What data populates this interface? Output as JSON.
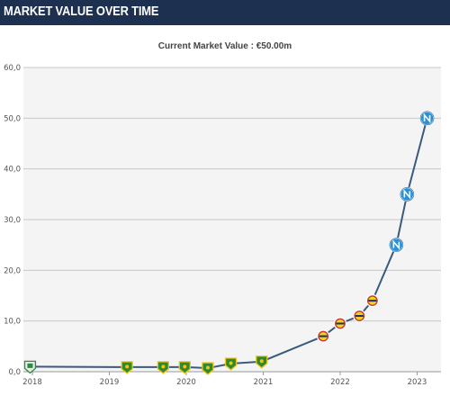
{
  "header": {
    "title": "MARKET VALUE OVER TIME"
  },
  "chart_data": {
    "type": "line",
    "title": "Current Market Value : €50.00m",
    "xlabel": "",
    "ylabel": "",
    "ylim": [
      0,
      60
    ],
    "y_ticks": [
      "0,0",
      "10,0",
      "20,0",
      "30,0",
      "40,0",
      "50,0",
      "60,0"
    ],
    "x_ticks": [
      "2018",
      "2019",
      "2020",
      "2021",
      "2022",
      "2023"
    ],
    "xlim": [
      2018.0,
      2023.1
    ],
    "grid": true,
    "legend": "none",
    "line_color": "#3a5a80",
    "series": [
      {
        "x": [
          2017.97,
          2019.23,
          2019.7,
          2019.98,
          2020.28,
          2020.58,
          2020.98,
          2021.78,
          2022.0,
          2022.25,
          2022.42,
          2022.73,
          2022.87,
          2023.13
        ],
        "values": [
          1.0,
          0.9,
          0.9,
          0.9,
          0.7,
          1.6,
          2.0,
          7.0,
          9.5,
          11.0,
          14.0,
          25.0,
          35.0,
          50.0
        ],
        "markers": [
          "club-ferencvaros",
          "club-akhmat",
          "club-akhmat",
          "club-akhmat",
          "club-akhmat",
          "club-akhmat",
          "club-akhmat",
          "club-fenerbahce",
          "club-fenerbahce",
          "club-fenerbahce",
          "club-fenerbahce",
          "club-napoli",
          "club-napoli",
          "club-napoli"
        ]
      }
    ]
  }
}
